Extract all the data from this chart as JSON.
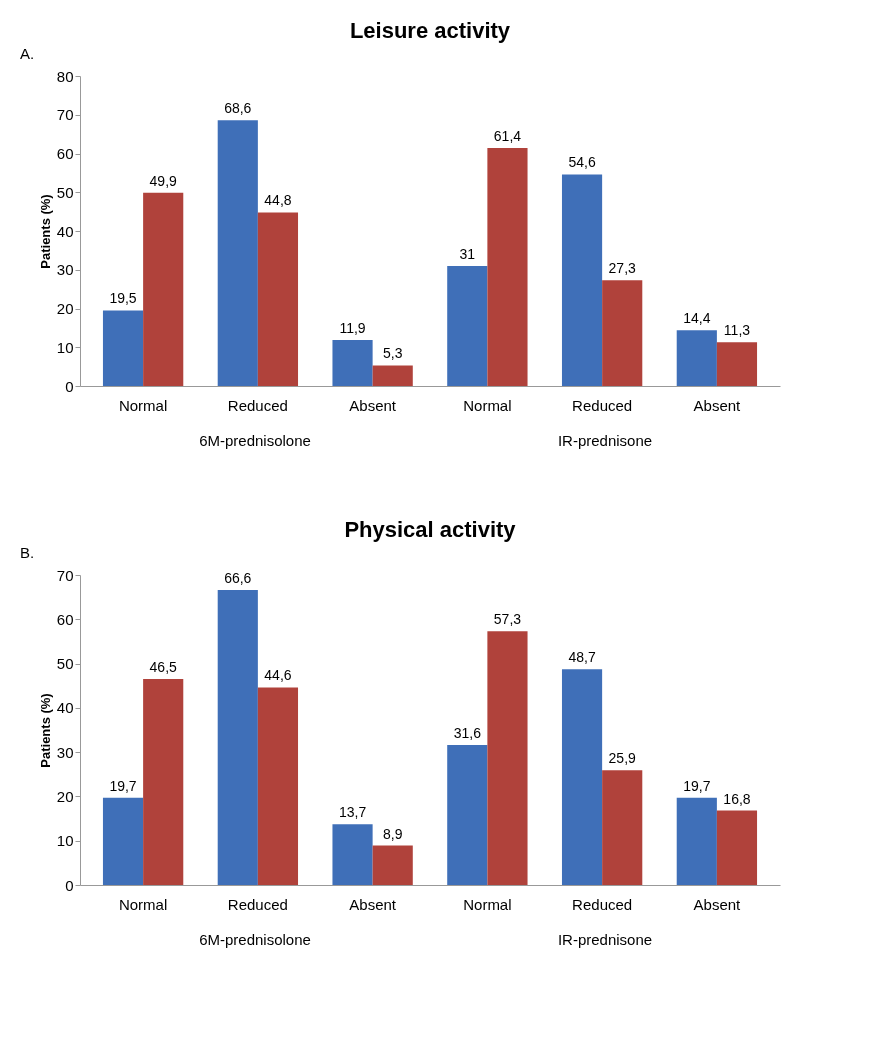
{
  "chart_data": [
    {
      "type": "bar",
      "title": "Leisure activity",
      "ylabel": "Patients (%)",
      "categories": [
        "Normal",
        "Reduced",
        "Absent",
        "Normal",
        "Reduced",
        "Absent"
      ],
      "series": [
        {
          "color": "#3f6fb8",
          "values": [
            19.5,
            68.6,
            11.9,
            31,
            54.6,
            14.4
          ],
          "value_labels": [
            "19,5",
            "68,6",
            "11,9",
            "31",
            "54,6",
            "14,4"
          ]
        },
        {
          "color": "#b0423b",
          "values": [
            49.9,
            44.8,
            5.3,
            61.4,
            27.3,
            11.3
          ],
          "value_labels": [
            "49,9",
            "44,8",
            "5,3",
            "61,4",
            "27,3",
            "11,3"
          ]
        }
      ],
      "ylim": [
        0,
        80
      ],
      "yticks": [
        0,
        10,
        20,
        30,
        40,
        50,
        60,
        70,
        80
      ],
      "grid": false,
      "legend": false,
      "annotations": [
        "A.",
        "6M-prednisolone",
        "IR-prednisone"
      ]
    },
    {
      "type": "bar",
      "title": "Physical activity",
      "ylabel": "Patients (%)",
      "categories": [
        "Normal",
        "Reduced",
        "Absent",
        "Normal",
        "Reduced",
        "Absent"
      ],
      "series": [
        {
          "color": "#3f6fb8",
          "values": [
            19.7,
            66.6,
            13.7,
            31.6,
            48.7,
            19.7
          ],
          "value_labels": [
            "19,7",
            "66,6",
            "13,7",
            "31,6",
            "48,7",
            "19,7"
          ]
        },
        {
          "color": "#b0423b",
          "values": [
            46.5,
            44.6,
            8.9,
            57.3,
            25.9,
            16.8
          ],
          "value_labels": [
            "46,5",
            "44,6",
            "8,9",
            "57,3",
            "25,9",
            "16,8"
          ]
        }
      ],
      "ylim": [
        0,
        70
      ],
      "yticks": [
        0,
        10,
        20,
        30,
        40,
        50,
        60,
        70
      ],
      "grid": false,
      "legend": false,
      "annotations": [
        "B.",
        "6M-prednisolone",
        "IR-prednisone"
      ]
    }
  ]
}
